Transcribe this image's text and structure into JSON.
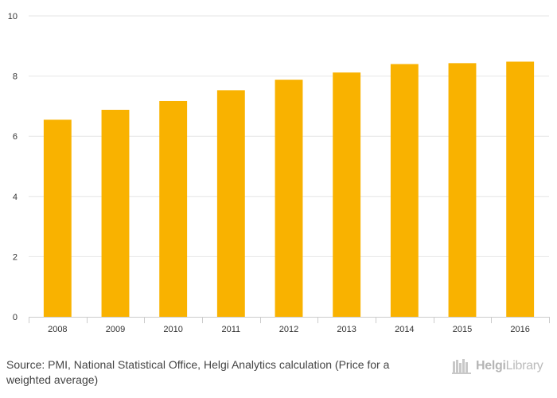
{
  "chart_data": {
    "type": "bar",
    "title": "",
    "xlabel": "",
    "ylabel": "",
    "categories": [
      "2008",
      "2009",
      "2010",
      "2011",
      "2012",
      "2013",
      "2014",
      "2015",
      "2016"
    ],
    "values": [
      6.55,
      6.88,
      7.17,
      7.53,
      7.88,
      8.12,
      8.4,
      8.43,
      8.48
    ],
    "ylim": [
      0,
      10
    ],
    "yticks": [
      0,
      2,
      4,
      6,
      8,
      10
    ],
    "grid": true,
    "legend": "none",
    "bar_color": "#f9b200",
    "grid_color": "#e6e6e6"
  },
  "footer": {
    "source": "Source: PMI, National Statistical Office, Helgi Analytics calculation (Price for a weighted average)",
    "logo_bold": "Helgi",
    "logo_light": "Library"
  }
}
